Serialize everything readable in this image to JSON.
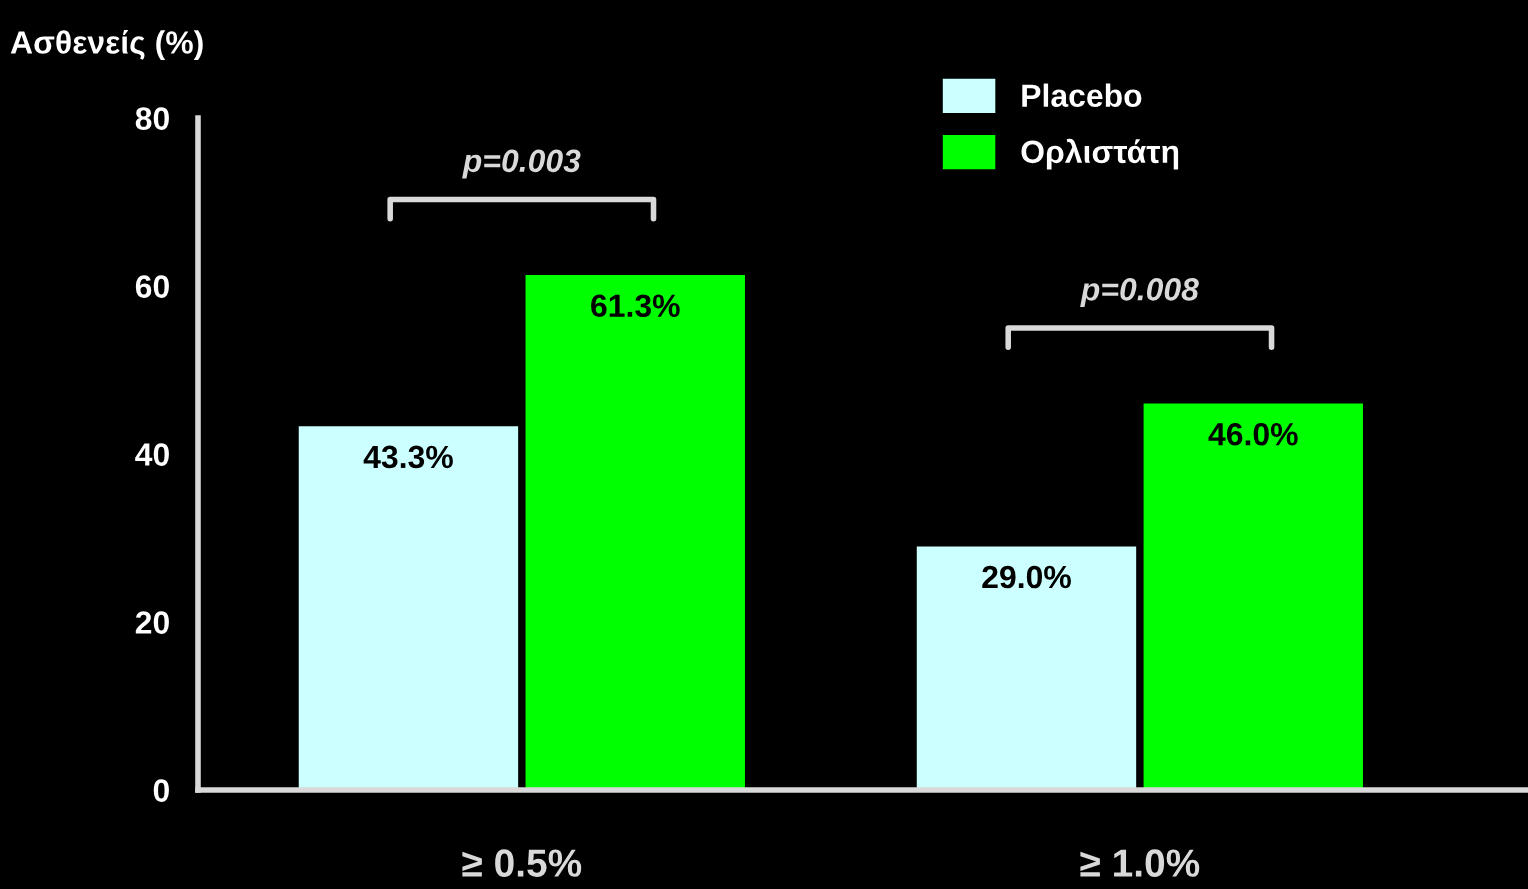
{
  "chart_data": {
    "type": "bar",
    "ylabel": "Ασθενείς (%)",
    "categories": [
      "≥ 0.5%",
      "≥ 1.0%"
    ],
    "series": [
      {
        "name": "Placebo",
        "color": "#ccffff",
        "values": [
          43.3,
          29.0
        ],
        "value_labels": [
          "43.3%",
          "29.0%"
        ]
      },
      {
        "name": "Ορλιστάτη",
        "color": "#00ff00",
        "values": [
          61.3,
          46.0
        ],
        "value_labels": [
          "61.3%",
          "46.0%"
        ]
      }
    ],
    "ylim": [
      0,
      80
    ],
    "yticks": [
      0,
      20,
      40,
      60,
      80
    ],
    "grid": false,
    "legend": "top right",
    "annotations": [
      "p=0.003",
      "p=0.008"
    ]
  }
}
